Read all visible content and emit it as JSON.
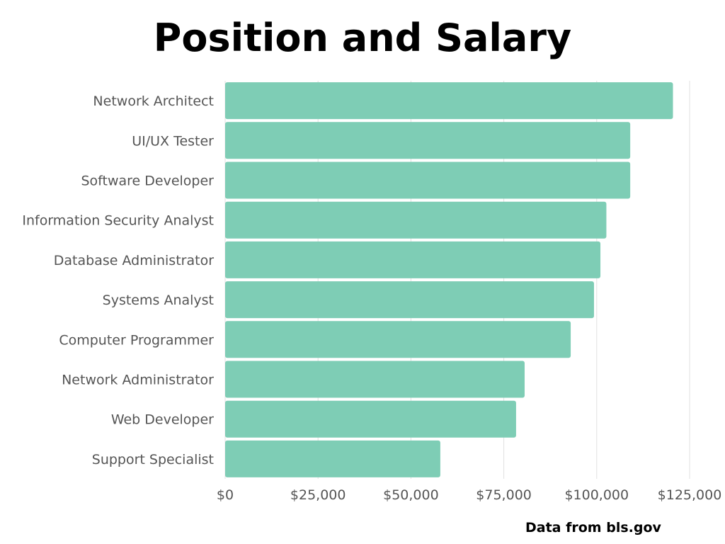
{
  "chart_data": {
    "type": "bar",
    "orientation": "horizontal",
    "title": "Position and Salary",
    "xlabel": "",
    "ylabel": "",
    "categories": [
      "Network Architect",
      "UI/UX Tester",
      "Software Developer",
      "Information Security Analyst",
      "Database Administrator",
      "Systems Analyst",
      "Computer Programmer",
      "Network Administrator",
      "Web Developer",
      "Support Specialist"
    ],
    "values": [
      120520,
      109020,
      109020,
      102600,
      101000,
      99270,
      93000,
      80600,
      78300,
      57910
    ],
    "xlim": [
      0,
      125000
    ],
    "x_ticks": [
      0,
      25000,
      50000,
      75000,
      100000,
      125000
    ],
    "x_tick_labels": [
      "$0",
      "$25,000",
      "$50,000",
      "$75,000",
      "$100,000",
      "$125,000"
    ],
    "grid": true,
    "bar_color": "#7ecdb5",
    "grid_color": "#e0e0e0",
    "label_color": "#555555"
  },
  "source_note": "Data from bls.gov"
}
